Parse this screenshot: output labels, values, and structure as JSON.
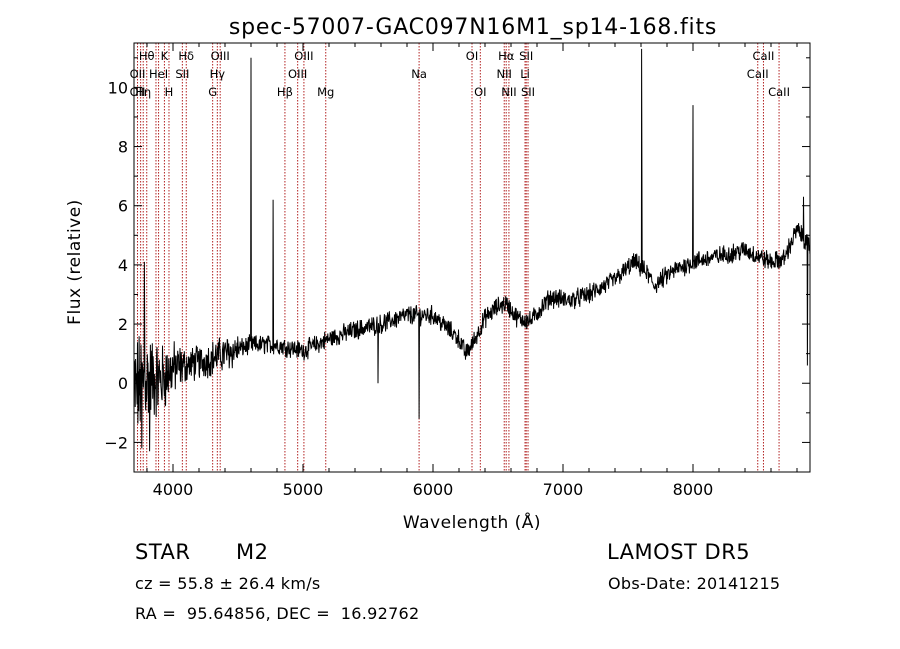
{
  "chart_data": {
    "type": "line",
    "title": "spec-57007-GAC097N16M1_sp14-168.fits",
    "xlabel": "Wavelength (Å)",
    "ylabel": "Flux (relative)",
    "xlim": [
      3700,
      8900
    ],
    "ylim": [
      -3,
      11.5
    ],
    "x_ticks": [
      4000,
      5000,
      6000,
      7000,
      8000
    ],
    "y_ticks": [
      -2,
      0,
      2,
      4,
      6,
      8,
      10
    ],
    "grid": false,
    "line_color": "#000000",
    "marker_color": "#b22222",
    "continuum": [
      {
        "x": 3700,
        "y": -0.3
      },
      {
        "x": 3800,
        "y": 0.2
      },
      {
        "x": 3900,
        "y": 0.1
      },
      {
        "x": 4000,
        "y": 0.5
      },
      {
        "x": 4200,
        "y": 0.7
      },
      {
        "x": 4400,
        "y": 1.0
      },
      {
        "x": 4600,
        "y": 1.3
      },
      {
        "x": 4800,
        "y": 1.3
      },
      {
        "x": 5000,
        "y": 1.1
      },
      {
        "x": 5200,
        "y": 1.5
      },
      {
        "x": 5400,
        "y": 1.8
      },
      {
        "x": 5600,
        "y": 2.0
      },
      {
        "x": 5800,
        "y": 2.3
      },
      {
        "x": 6000,
        "y": 2.3
      },
      {
        "x": 6100,
        "y": 1.9
      },
      {
        "x": 6200,
        "y": 1.5
      },
      {
        "x": 6250,
        "y": 1.0
      },
      {
        "x": 6300,
        "y": 1.3
      },
      {
        "x": 6400,
        "y": 2.2
      },
      {
        "x": 6500,
        "y": 2.6
      },
      {
        "x": 6560,
        "y": 2.7
      },
      {
        "x": 6650,
        "y": 2.2
      },
      {
        "x": 6750,
        "y": 2.1
      },
      {
        "x": 6900,
        "y": 2.9
      },
      {
        "x": 7050,
        "y": 2.8
      },
      {
        "x": 7200,
        "y": 3.0
      },
      {
        "x": 7400,
        "y": 3.5
      },
      {
        "x": 7550,
        "y": 4.1
      },
      {
        "x": 7650,
        "y": 3.7
      },
      {
        "x": 7700,
        "y": 3.3
      },
      {
        "x": 7850,
        "y": 3.8
      },
      {
        "x": 8000,
        "y": 4.1
      },
      {
        "x": 8200,
        "y": 4.3
      },
      {
        "x": 8400,
        "y": 4.5
      },
      {
        "x": 8600,
        "y": 4.1
      },
      {
        "x": 8700,
        "y": 4.2
      },
      {
        "x": 8800,
        "y": 5.2
      },
      {
        "x": 8900,
        "y": 4.6
      }
    ],
    "features": [
      {
        "x": 4600,
        "y": 11.0
      },
      {
        "x": 4770,
        "y": 6.2
      },
      {
        "x": 5577,
        "y": 0.0
      },
      {
        "x": 5893,
        "y": -1.2
      },
      {
        "x": 7605,
        "y": 11.3
      },
      {
        "x": 8000,
        "y": 9.4
      },
      {
        "x": 3780,
        "y": 4.1
      },
      {
        "x": 3760,
        "y": -2.2
      },
      {
        "x": 3820,
        "y": -2.3
      },
      {
        "x": 8850,
        "y": 6.3
      },
      {
        "x": 8880,
        "y": 0.6
      }
    ],
    "line_markers": [
      {
        "x": 3727,
        "label": "OII",
        "row": 2
      },
      {
        "x": 3751,
        "label": "",
        "row": 0
      },
      {
        "x": 3771,
        "label": "Hη",
        "row": 2
      },
      {
        "x": 3798,
        "label": "Hθ",
        "row": 0
      },
      {
        "x": 3869,
        "label": "",
        "row": 0
      },
      {
        "x": 3889,
        "label": "HeI",
        "row": 1
      },
      {
        "x": 3934,
        "label": "K",
        "row": 0
      },
      {
        "x": 3969,
        "label": "H",
        "row": 2
      },
      {
        "x": 4072,
        "label": "SII",
        "row": 1
      },
      {
        "x": 4102,
        "label": "Hδ",
        "row": 0
      },
      {
        "x": 4305,
        "label": "G",
        "row": 2
      },
      {
        "x": 4341,
        "label": "Hγ",
        "row": 1
      },
      {
        "x": 4363,
        "label": "OIII",
        "row": 0
      },
      {
        "x": 4861,
        "label": "Hβ",
        "row": 2
      },
      {
        "x": 4959,
        "label": "OIII",
        "row": 1
      },
      {
        "x": 5007,
        "label": "OIII",
        "row": 0
      },
      {
        "x": 5175,
        "label": "Mg",
        "row": 2
      },
      {
        "x": 5893,
        "label": "Na",
        "row": 1
      },
      {
        "x": 6300,
        "label": "OI",
        "row": 0
      },
      {
        "x": 6364,
        "label": "OI",
        "row": 2
      },
      {
        "x": 6548,
        "label": "NII",
        "row": 1
      },
      {
        "x": 6563,
        "label": "Hα",
        "row": 0
      },
      {
        "x": 6584,
        "label": "NII",
        "row": 2
      },
      {
        "x": 6708,
        "label": "Li",
        "row": 1
      },
      {
        "x": 6717,
        "label": "SII",
        "row": 0
      },
      {
        "x": 6731,
        "label": "SII",
        "row": 2
      },
      {
        "x": 8498,
        "label": "CaII",
        "row": 1
      },
      {
        "x": 8542,
        "label": "CaII",
        "row": 0
      },
      {
        "x": 8662,
        "label": "CaII",
        "row": 2
      }
    ],
    "extra_labels": [
      {
        "x": 3727,
        "label": "OII",
        "row": 1
      }
    ]
  },
  "info": {
    "class_label": "STAR",
    "subclass": "M2",
    "survey": "LAMOST DR5",
    "velocity": "cz = 55.8 ± 26.4 km/s",
    "obs_date": "Obs-Date: 20141215",
    "coords": "RA =  95.64856, DEC =  16.92762"
  }
}
